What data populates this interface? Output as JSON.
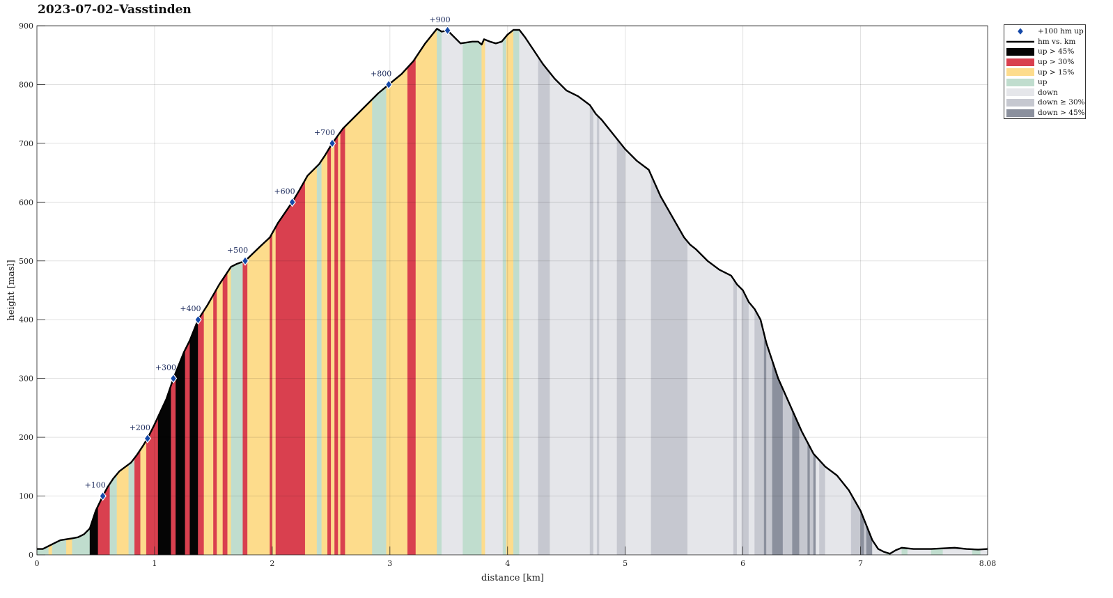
{
  "title": "2023-07-02–Vasstinden",
  "chart_data": {
    "type": "area",
    "title": "2023-07-02–Vasstinden",
    "xlabel": "distance [km]",
    "ylabel": "height [masl]",
    "xlim": [
      0,
      8.08
    ],
    "ylim": [
      0,
      900
    ],
    "xticks": [
      0,
      1,
      2,
      3,
      4,
      5,
      6,
      7,
      8.08
    ],
    "xtick_labels": [
      "0",
      "1",
      "2",
      "3",
      "4",
      "5",
      "6",
      "7",
      "8.08"
    ],
    "yticks": [
      0,
      100,
      200,
      300,
      400,
      500,
      600,
      700,
      800,
      900
    ],
    "ytick_labels": [
      "0",
      "100",
      "200",
      "300",
      "400",
      "500",
      "600",
      "700",
      "800",
      "900"
    ],
    "grid": true,
    "legend_placement": "outside-top-right",
    "profile": {
      "name": "hm vs. km",
      "x": [
        0,
        0.05,
        0.1,
        0.15,
        0.2,
        0.3,
        0.35,
        0.4,
        0.45,
        0.5,
        0.56,
        0.6,
        0.65,
        0.7,
        0.8,
        0.85,
        0.9,
        0.94,
        1.0,
        1.1,
        1.16,
        1.25,
        1.3,
        1.37,
        1.45,
        1.55,
        1.65,
        1.7,
        1.77,
        1.9,
        1.98,
        2.05,
        2.17,
        2.23,
        2.3,
        2.4,
        2.45,
        2.51,
        2.6,
        2.7,
        2.8,
        2.9,
        2.99,
        3.1,
        3.2,
        3.3,
        3.4,
        3.44,
        3.49,
        3.55,
        3.6,
        3.7,
        3.75,
        3.78,
        3.8,
        3.85,
        3.9,
        3.95,
        4.0,
        4.05,
        4.1,
        4.15,
        4.2,
        4.3,
        4.4,
        4.5,
        4.6,
        4.7,
        4.75,
        4.8,
        4.9,
        5.0,
        5.1,
        5.2,
        5.3,
        5.4,
        5.5,
        5.55,
        5.6,
        5.7,
        5.8,
        5.9,
        5.95,
        6.0,
        6.05,
        6.1,
        6.15,
        6.2,
        6.3,
        6.4,
        6.5,
        6.6,
        6.7,
        6.8,
        6.9,
        7.0,
        7.05,
        7.1,
        7.15,
        7.2,
        7.25,
        7.3,
        7.35,
        7.45,
        7.6,
        7.7,
        7.8,
        7.9,
        8.0,
        8.08
      ],
      "y": [
        10,
        10,
        15,
        20,
        25,
        28,
        30,
        35,
        45,
        75,
        100,
        115,
        130,
        142,
        157,
        170,
        185,
        198,
        222,
        265,
        300,
        345,
        365,
        400,
        425,
        460,
        490,
        495,
        500,
        525,
        540,
        565,
        600,
        620,
        645,
        665,
        680,
        700,
        725,
        745,
        765,
        785,
        800,
        818,
        840,
        870,
        895,
        890,
        892,
        880,
        870,
        873,
        873,
        868,
        877,
        873,
        870,
        873,
        885,
        893,
        893,
        880,
        865,
        835,
        810,
        790,
        780,
        765,
        750,
        740,
        715,
        690,
        670,
        655,
        610,
        575,
        540,
        528,
        520,
        500,
        485,
        475,
        460,
        450,
        430,
        418,
        400,
        360,
        300,
        255,
        210,
        172,
        150,
        135,
        110,
        75,
        50,
        25,
        10,
        5,
        2,
        8,
        12,
        10,
        10,
        11,
        12,
        10,
        9,
        10
      ]
    },
    "segments": [
      {
        "from": 0.0,
        "to": 0.1,
        "cat": "up"
      },
      {
        "from": 0.1,
        "to": 0.13,
        "cat": "up15"
      },
      {
        "from": 0.13,
        "to": 0.25,
        "cat": "up"
      },
      {
        "from": 0.25,
        "to": 0.3,
        "cat": "up15"
      },
      {
        "from": 0.3,
        "to": 0.45,
        "cat": "up"
      },
      {
        "from": 0.45,
        "to": 0.52,
        "cat": "up45"
      },
      {
        "from": 0.52,
        "to": 0.62,
        "cat": "up30"
      },
      {
        "from": 0.62,
        "to": 0.68,
        "cat": "up"
      },
      {
        "from": 0.68,
        "to": 0.78,
        "cat": "up15"
      },
      {
        "from": 0.78,
        "to": 0.83,
        "cat": "up"
      },
      {
        "from": 0.83,
        "to": 0.88,
        "cat": "up30"
      },
      {
        "from": 0.88,
        "to": 0.93,
        "cat": "up15"
      },
      {
        "from": 0.93,
        "to": 1.03,
        "cat": "up30"
      },
      {
        "from": 1.03,
        "to": 1.14,
        "cat": "up45"
      },
      {
        "from": 1.14,
        "to": 1.18,
        "cat": "up30"
      },
      {
        "from": 1.18,
        "to": 1.26,
        "cat": "up45"
      },
      {
        "from": 1.26,
        "to": 1.3,
        "cat": "up30"
      },
      {
        "from": 1.3,
        "to": 1.37,
        "cat": "up45"
      },
      {
        "from": 1.37,
        "to": 1.42,
        "cat": "up30"
      },
      {
        "from": 1.42,
        "to": 1.5,
        "cat": "up15"
      },
      {
        "from": 1.5,
        "to": 1.53,
        "cat": "up30"
      },
      {
        "from": 1.53,
        "to": 1.58,
        "cat": "up15"
      },
      {
        "from": 1.58,
        "to": 1.62,
        "cat": "up30"
      },
      {
        "from": 1.62,
        "to": 1.65,
        "cat": "up15"
      },
      {
        "from": 1.65,
        "to": 1.75,
        "cat": "up"
      },
      {
        "from": 1.75,
        "to": 1.79,
        "cat": "up30"
      },
      {
        "from": 1.79,
        "to": 1.98,
        "cat": "up15"
      },
      {
        "from": 1.98,
        "to": 2.0,
        "cat": "up30"
      },
      {
        "from": 2.0,
        "to": 2.03,
        "cat": "up15"
      },
      {
        "from": 2.03,
        "to": 2.28,
        "cat": "up30"
      },
      {
        "from": 2.28,
        "to": 2.38,
        "cat": "up15"
      },
      {
        "from": 2.38,
        "to": 2.42,
        "cat": "up"
      },
      {
        "from": 2.42,
        "to": 2.47,
        "cat": "up15"
      },
      {
        "from": 2.47,
        "to": 2.5,
        "cat": "up30"
      },
      {
        "from": 2.5,
        "to": 2.53,
        "cat": "up15"
      },
      {
        "from": 2.53,
        "to": 2.56,
        "cat": "up30"
      },
      {
        "from": 2.56,
        "to": 2.58,
        "cat": "up15"
      },
      {
        "from": 2.58,
        "to": 2.62,
        "cat": "up30"
      },
      {
        "from": 2.62,
        "to": 2.85,
        "cat": "up15"
      },
      {
        "from": 2.85,
        "to": 2.97,
        "cat": "up"
      },
      {
        "from": 2.97,
        "to": 3.15,
        "cat": "up15"
      },
      {
        "from": 3.15,
        "to": 3.22,
        "cat": "up30"
      },
      {
        "from": 3.22,
        "to": 3.4,
        "cat": "up15"
      },
      {
        "from": 3.4,
        "to": 3.44,
        "cat": "up"
      },
      {
        "from": 3.44,
        "to": 3.62,
        "cat": "down"
      },
      {
        "from": 3.62,
        "to": 3.78,
        "cat": "up"
      },
      {
        "from": 3.78,
        "to": 3.81,
        "cat": "up15"
      },
      {
        "from": 3.81,
        "to": 3.96,
        "cat": "down"
      },
      {
        "from": 3.96,
        "to": 3.99,
        "cat": "up"
      },
      {
        "from": 3.99,
        "to": 4.05,
        "cat": "up15"
      },
      {
        "from": 4.05,
        "to": 4.1,
        "cat": "up"
      },
      {
        "from": 4.1,
        "to": 4.26,
        "cat": "down"
      },
      {
        "from": 4.26,
        "to": 4.36,
        "cat": "down30"
      },
      {
        "from": 4.36,
        "to": 4.7,
        "cat": "down"
      },
      {
        "from": 4.7,
        "to": 4.73,
        "cat": "down30"
      },
      {
        "from": 4.73,
        "to": 4.76,
        "cat": "down"
      },
      {
        "from": 4.76,
        "to": 4.78,
        "cat": "down30"
      },
      {
        "from": 4.78,
        "to": 4.93,
        "cat": "down"
      },
      {
        "from": 4.93,
        "to": 5.0,
        "cat": "down30"
      },
      {
        "from": 5.0,
        "to": 5.22,
        "cat": "down"
      },
      {
        "from": 5.22,
        "to": 5.53,
        "cat": "down30"
      },
      {
        "from": 5.53,
        "to": 5.92,
        "cat": "down"
      },
      {
        "from": 5.92,
        "to": 5.95,
        "cat": "down30"
      },
      {
        "from": 5.95,
        "to": 5.99,
        "cat": "down"
      },
      {
        "from": 5.99,
        "to": 6.05,
        "cat": "down30"
      },
      {
        "from": 6.05,
        "to": 6.1,
        "cat": "down"
      },
      {
        "from": 6.1,
        "to": 6.18,
        "cat": "down30"
      },
      {
        "from": 6.18,
        "to": 6.2,
        "cat": "down45"
      },
      {
        "from": 6.2,
        "to": 6.25,
        "cat": "down30"
      },
      {
        "from": 6.25,
        "to": 6.34,
        "cat": "down45"
      },
      {
        "from": 6.34,
        "to": 6.42,
        "cat": "down30"
      },
      {
        "from": 6.42,
        "to": 6.48,
        "cat": "down45"
      },
      {
        "from": 6.48,
        "to": 6.55,
        "cat": "down30"
      },
      {
        "from": 6.55,
        "to": 6.57,
        "cat": "down45"
      },
      {
        "from": 6.57,
        "to": 6.6,
        "cat": "down30"
      },
      {
        "from": 6.6,
        "to": 6.62,
        "cat": "down45"
      },
      {
        "from": 6.62,
        "to": 6.65,
        "cat": "down"
      },
      {
        "from": 6.65,
        "to": 6.7,
        "cat": "down30"
      },
      {
        "from": 6.7,
        "to": 6.92,
        "cat": "down"
      },
      {
        "from": 6.92,
        "to": 7.0,
        "cat": "down30"
      },
      {
        "from": 7.0,
        "to": 7.03,
        "cat": "down45"
      },
      {
        "from": 7.03,
        "to": 7.05,
        "cat": "down30"
      },
      {
        "from": 7.05,
        "to": 7.1,
        "cat": "down45"
      },
      {
        "from": 7.1,
        "to": 7.22,
        "cat": "down"
      },
      {
        "from": 7.22,
        "to": 7.25,
        "cat": "up"
      },
      {
        "from": 7.25,
        "to": 7.35,
        "cat": "down"
      },
      {
        "from": 7.35,
        "to": 7.4,
        "cat": "up"
      },
      {
        "from": 7.4,
        "to": 7.6,
        "cat": "down"
      },
      {
        "from": 7.6,
        "to": 7.7,
        "cat": "up"
      },
      {
        "from": 7.7,
        "to": 7.95,
        "cat": "down"
      },
      {
        "from": 7.95,
        "to": 8.02,
        "cat": "up"
      },
      {
        "from": 8.02,
        "to": 8.08,
        "cat": "down"
      }
    ],
    "milestones": {
      "name": "+100 hm up",
      "points": [
        {
          "x": 0.56,
          "y": 100,
          "label": "+100"
        },
        {
          "x": 0.94,
          "y": 198,
          "label": "+200"
        },
        {
          "x": 1.16,
          "y": 300,
          "label": "+300"
        },
        {
          "x": 1.37,
          "y": 400,
          "label": "+400"
        },
        {
          "x": 1.77,
          "y": 500,
          "label": "+500"
        },
        {
          "x": 2.17,
          "y": 600,
          "label": "+600"
        },
        {
          "x": 2.51,
          "y": 700,
          "label": "+700"
        },
        {
          "x": 2.99,
          "y": 800,
          "label": "+800"
        },
        {
          "x": 3.49,
          "y": 892,
          "label": "+900"
        }
      ]
    },
    "legend": [
      {
        "key": "milestone",
        "label": "+100 hm up"
      },
      {
        "key": "line",
        "label": "hm vs. km"
      },
      {
        "key": "up45",
        "label": "up > 45%"
      },
      {
        "key": "up30",
        "label": "up > 30%"
      },
      {
        "key": "up15",
        "label": "up > 15%"
      },
      {
        "key": "up",
        "label": "up"
      },
      {
        "key": "down",
        "label": "down"
      },
      {
        "key": "down30",
        "label": "down ≥ 30%"
      },
      {
        "key": "down45",
        "label": "down > 45%"
      }
    ],
    "colors": {
      "up45": "#050505",
      "up30": "#d9404f",
      "up15": "#fddc8c",
      "up": "#c0ddce",
      "down": "#e5e6ea",
      "down30": "#c6c8d0",
      "down45": "#8b909d",
      "line": "#000000",
      "milestone": "#1448a8",
      "annotation": "#1b2a5c"
    }
  }
}
